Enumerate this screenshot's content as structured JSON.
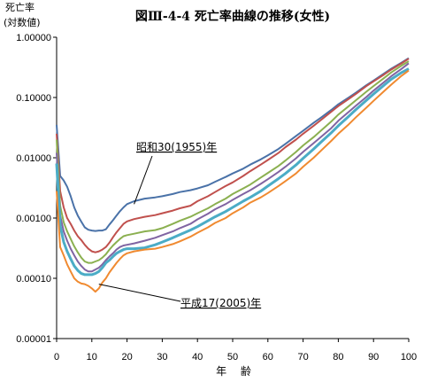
{
  "chart_data": {
    "type": "line",
    "title": "図Ⅲ-4-4 死亡率曲線の推移(女性)",
    "ylabel_lines": [
      "死亡率",
      "(対数値)"
    ],
    "xlabel": "年 齢",
    "y_scale": "log",
    "ylim": [
      1e-05,
      1.0
    ],
    "xlim": [
      0,
      100
    ],
    "y_ticks": [
      1.0,
      0.1,
      0.01,
      0.001,
      0.0001,
      1e-05
    ],
    "y_tick_labels": [
      "1.00000",
      "0.10000",
      "0.01000",
      "0.00100",
      "0.00010",
      "0.00001"
    ],
    "x_ticks": [
      0,
      10,
      20,
      30,
      40,
      50,
      60,
      70,
      80,
      90,
      100
    ],
    "x_tick_labels": [
      "0",
      "10",
      "20",
      "30",
      "40",
      "50",
      "60",
      "70",
      "80",
      "90",
      "100"
    ],
    "grid": false,
    "legend": "none",
    "annotations": [
      {
        "text": "昭和30(1955)年",
        "series_index": 0,
        "x": 22,
        "y": 0.0017
      },
      {
        "text": "平成17(2005)年",
        "series_index": 5,
        "x": 12,
        "y": 8e-05
      }
    ],
    "series": [
      {
        "color": "#4a72a8",
        "x": [
          0,
          1,
          2,
          3,
          4,
          5,
          6,
          7,
          8,
          9,
          10,
          11,
          12,
          13,
          14,
          15,
          16,
          17,
          18,
          19,
          20,
          22,
          25,
          28,
          30,
          33,
          35,
          38,
          40,
          43,
          45,
          48,
          50,
          53,
          55,
          58,
          60,
          63,
          65,
          68,
          70,
          73,
          75,
          78,
          80,
          83,
          85,
          88,
          90,
          93,
          95,
          98,
          100
        ],
        "y": [
          0.035,
          0.005,
          0.0042,
          0.0033,
          0.0023,
          0.0015,
          0.0011,
          0.00087,
          0.0007,
          0.00064,
          0.00062,
          0.00061,
          0.00062,
          0.00062,
          0.00065,
          0.00078,
          0.00092,
          0.0011,
          0.0013,
          0.0015,
          0.0017,
          0.0019,
          0.0021,
          0.0022,
          0.0023,
          0.0025,
          0.0027,
          0.0029,
          0.0031,
          0.0035,
          0.004,
          0.0048,
          0.0055,
          0.0066,
          0.0077,
          0.0094,
          0.011,
          0.014,
          0.017,
          0.023,
          0.028,
          0.038,
          0.046,
          0.062,
          0.077,
          0.1,
          0.12,
          0.16,
          0.19,
          0.25,
          0.3,
          0.38,
          0.45
        ]
      },
      {
        "color": "#c0504d",
        "x": [
          0,
          1,
          2,
          3,
          4,
          5,
          6,
          7,
          8,
          9,
          10,
          11,
          12,
          13,
          14,
          15,
          16,
          17,
          18,
          19,
          20,
          22,
          25,
          28,
          30,
          33,
          35,
          38,
          40,
          43,
          45,
          48,
          50,
          53,
          55,
          58,
          60,
          63,
          65,
          68,
          70,
          73,
          75,
          78,
          80,
          83,
          85,
          88,
          90,
          93,
          95,
          98,
          100
        ],
        "y": [
          0.025,
          0.0028,
          0.0015,
          0.001,
          0.0008,
          0.00062,
          0.0005,
          0.00043,
          0.00036,
          0.00031,
          0.00028,
          0.00027,
          0.00028,
          0.0003,
          0.00033,
          0.00039,
          0.00048,
          0.00058,
          0.00068,
          0.0008,
          0.00088,
          0.00096,
          0.00105,
          0.00112,
          0.0012,
          0.00133,
          0.00145,
          0.0016,
          0.0019,
          0.0023,
          0.0027,
          0.0034,
          0.0039,
          0.005,
          0.006,
          0.0077,
          0.0092,
          0.012,
          0.015,
          0.02,
          0.025,
          0.034,
          0.042,
          0.058,
          0.072,
          0.095,
          0.115,
          0.155,
          0.185,
          0.24,
          0.29,
          0.37,
          0.44
        ]
      },
      {
        "color": "#8bb050",
        "x": [
          0,
          1,
          2,
          3,
          4,
          5,
          6,
          7,
          8,
          9,
          10,
          11,
          12,
          13,
          14,
          15,
          16,
          17,
          18,
          19,
          20,
          22,
          25,
          28,
          30,
          33,
          35,
          38,
          40,
          43,
          45,
          48,
          50,
          53,
          55,
          58,
          60,
          63,
          65,
          68,
          70,
          73,
          75,
          78,
          80,
          83,
          85,
          88,
          90,
          93,
          95,
          98,
          100
        ],
        "y": [
          0.02,
          0.0016,
          0.00085,
          0.0006,
          0.00045,
          0.00034,
          0.00027,
          0.00022,
          0.00019,
          0.00018,
          0.00018,
          0.00019,
          0.0002,
          0.00022,
          0.00025,
          0.0003,
          0.00035,
          0.0004,
          0.00045,
          0.0005,
          0.00052,
          0.00055,
          0.0006,
          0.00063,
          0.00068,
          0.0008,
          0.0009,
          0.00105,
          0.0012,
          0.00145,
          0.0017,
          0.0021,
          0.0025,
          0.0031,
          0.0036,
          0.0047,
          0.0056,
          0.0073,
          0.009,
          0.0125,
          0.016,
          0.022,
          0.028,
          0.04,
          0.052,
          0.072,
          0.09,
          0.125,
          0.155,
          0.21,
          0.26,
          0.34,
          0.4
        ]
      },
      {
        "color": "#8064a2",
        "x": [
          0,
          1,
          2,
          3,
          4,
          5,
          6,
          7,
          8,
          9,
          10,
          11,
          12,
          13,
          14,
          15,
          16,
          17,
          18,
          19,
          20,
          22,
          25,
          28,
          30,
          33,
          35,
          38,
          40,
          43,
          45,
          48,
          50,
          53,
          55,
          58,
          60,
          63,
          65,
          68,
          70,
          73,
          75,
          78,
          80,
          83,
          85,
          88,
          90,
          93,
          95,
          98,
          100
        ],
        "y": [
          0.012,
          0.0011,
          0.0006,
          0.00042,
          0.00031,
          0.00024,
          0.00019,
          0.00016,
          0.00014,
          0.00013,
          0.00013,
          0.00014,
          0.00015,
          0.00017,
          0.0002,
          0.00023,
          0.00026,
          0.0003,
          0.00033,
          0.00035,
          0.00036,
          0.00038,
          0.00042,
          0.00047,
          0.00052,
          0.0006,
          0.00068,
          0.0008,
          0.00095,
          0.00118,
          0.0014,
          0.0017,
          0.002,
          0.0025,
          0.0029,
          0.0037,
          0.0044,
          0.0058,
          0.0071,
          0.0098,
          0.0125,
          0.0175,
          0.022,
          0.031,
          0.041,
          0.058,
          0.073,
          0.102,
          0.13,
          0.18,
          0.225,
          0.3,
          0.37
        ]
      },
      {
        "color": "#4bacc6",
        "x": [
          0,
          1,
          2,
          3,
          4,
          5,
          6,
          7,
          8,
          9,
          10,
          11,
          12,
          13,
          14,
          15,
          16,
          17,
          18,
          19,
          20,
          22,
          25,
          28,
          30,
          33,
          35,
          38,
          40,
          43,
          45,
          48,
          50,
          53,
          55,
          58,
          60,
          63,
          65,
          68,
          70,
          73,
          75,
          78,
          80,
          83,
          85,
          88,
          90,
          93,
          95,
          98,
          100
        ],
        "y": [
          0.008,
          0.00075,
          0.0004,
          0.00028,
          0.00021,
          0.00016,
          0.000135,
          0.00012,
          0.000115,
          0.000115,
          0.000115,
          0.00012,
          0.00013,
          0.00015,
          0.00018,
          0.0002,
          0.00023,
          0.00026,
          0.00028,
          0.0003,
          0.00031,
          0.00031,
          0.00032,
          0.00036,
          0.0004,
          0.00047,
          0.00053,
          0.00063,
          0.00072,
          0.0009,
          0.00105,
          0.00128,
          0.0015,
          0.0019,
          0.0022,
          0.0028,
          0.0034,
          0.0045,
          0.0055,
          0.0076,
          0.0098,
          0.014,
          0.018,
          0.026,
          0.034,
          0.049,
          0.063,
          0.09,
          0.114,
          0.16,
          0.2,
          0.26,
          0.3
        ]
      },
      {
        "color": "#f08a30",
        "x": [
          0,
          1,
          2,
          3,
          4,
          5,
          6,
          7,
          8,
          9,
          10,
          11,
          12,
          13,
          14,
          15,
          16,
          17,
          18,
          19,
          20,
          22,
          25,
          28,
          30,
          33,
          35,
          38,
          40,
          43,
          45,
          48,
          50,
          53,
          55,
          58,
          60,
          63,
          65,
          68,
          70,
          73,
          75,
          78,
          80,
          83,
          85,
          88,
          90,
          93,
          95,
          98,
          100
        ],
        "y": [
          0.0028,
          0.00033,
          0.00024,
          0.00017,
          0.00013,
          0.0001,
          8.8e-05,
          8.2e-05,
          8e-05,
          7.5e-05,
          6.8e-05,
          6e-05,
          6.8e-05,
          8.5e-05,
          0.0001,
          0.000125,
          0.00015,
          0.00018,
          0.00021,
          0.00024,
          0.00026,
          0.00028,
          0.0003,
          0.00031,
          0.00033,
          0.00037,
          0.00041,
          0.00049,
          0.00057,
          0.0007,
          0.00083,
          0.001,
          0.0012,
          0.0015,
          0.0018,
          0.0022,
          0.0026,
          0.0034,
          0.0041,
          0.0055,
          0.0071,
          0.01,
          0.013,
          0.019,
          0.025,
          0.036,
          0.047,
          0.068,
          0.088,
          0.127,
          0.163,
          0.23,
          0.28
        ]
      }
    ]
  }
}
